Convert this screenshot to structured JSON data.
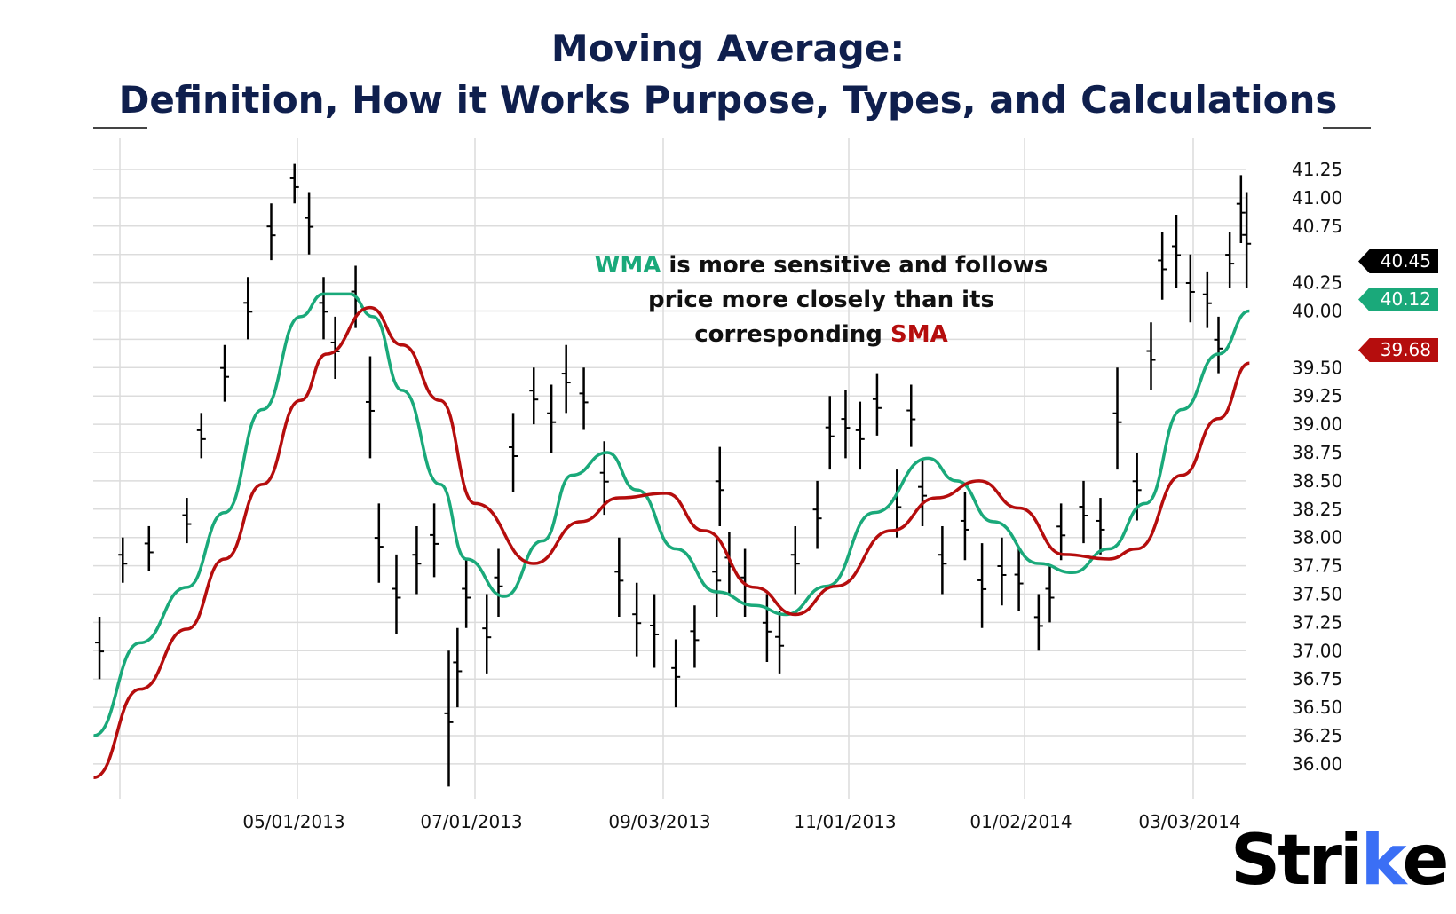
{
  "title_line1": "Moving Average:",
  "title_line2": "Definition, How it Works Purpose, Types, and Calculations",
  "annotation": {
    "wma_word": "WMA",
    "line1_rest": " is more sensitive and follows",
    "line2": "price more closely than its",
    "line3_pre": "corresponding ",
    "sma_word": "SMA"
  },
  "badges": {
    "price": "40.45",
    "wma": "40.12",
    "sma": "39.68"
  },
  "logo": {
    "text_main": "Stri",
    "text_k": "k",
    "text_e": "e"
  },
  "colors": {
    "price": "#000000",
    "wma": "#1aa97a",
    "sma": "#b50d0d",
    "title": "#0f1f4d",
    "grid": "#dcdcdc",
    "logo_accent": "#3b6ff5"
  },
  "chart_data": {
    "type": "ohlc-line",
    "title": "",
    "xlabel": "",
    "ylabel": "",
    "ylim": [
      35.9,
      41.3
    ],
    "grid": true,
    "y_ticks": [
      "41.25",
      "41.00",
      "40.75",
      "40.50",
      "40.25",
      "40.00",
      "39.75",
      "39.50",
      "39.25",
      "39.00",
      "38.75",
      "38.50",
      "38.25",
      "38.00",
      "37.75",
      "37.50",
      "37.25",
      "37.00",
      "36.75",
      "36.50",
      "36.25",
      "36.00"
    ],
    "y_ticks_labeled": [
      "41.25",
      "41.00",
      "40.75",
      "40.25",
      "40.00",
      "39.50",
      "39.25",
      "39.00",
      "38.75",
      "38.50",
      "38.25",
      "38.00",
      "37.75",
      "37.50",
      "37.25",
      "37.00",
      "36.75",
      "36.50",
      "36.25",
      "36.00"
    ],
    "x_gridlines": [
      "2013-03-01",
      "2013-05-01",
      "2013-07-01",
      "2013-09-03",
      "2013-11-01",
      "2014-01-02",
      "2014-03-03"
    ],
    "x_tick_labels": [
      {
        "date": "2013-05-01",
        "label": "05/01/2013"
      },
      {
        "date": "2013-07-01",
        "label": "07/01/2013"
      },
      {
        "date": "2013-09-03",
        "label": "09/03/2013"
      },
      {
        "date": "2013-11-01",
        "label": "11/01/2013"
      },
      {
        "date": "2014-01-02",
        "label": "01/02/2014"
      },
      {
        "date": "2014-03-03",
        "label": "03/03/2014"
      }
    ],
    "price_bars_low_high": [
      [
        "2013-02-22",
        36.75,
        37.3
      ],
      [
        "2013-03-02",
        37.6,
        38.0
      ],
      [
        "2013-03-11",
        37.7,
        38.1
      ],
      [
        "2013-03-24",
        37.95,
        38.35
      ],
      [
        "2013-03-29",
        38.7,
        39.1
      ],
      [
        "2013-04-06",
        39.2,
        39.7
      ],
      [
        "2013-04-14",
        39.75,
        40.3
      ],
      [
        "2013-04-22",
        40.45,
        40.95
      ],
      [
        "2013-04-30",
        40.95,
        41.3
      ],
      [
        "2013-05-05",
        40.5,
        41.05
      ],
      [
        "2013-05-10",
        39.75,
        40.3
      ],
      [
        "2013-05-14",
        39.4,
        39.95
      ],
      [
        "2013-05-21",
        39.85,
        40.4
      ],
      [
        "2013-05-26",
        38.7,
        39.6
      ],
      [
        "2013-05-29",
        37.6,
        38.3
      ],
      [
        "2013-06-04",
        37.15,
        37.85
      ],
      [
        "2013-06-11",
        37.5,
        38.1
      ],
      [
        "2013-06-17",
        37.65,
        38.3
      ],
      [
        "2013-06-22",
        35.8,
        37.0
      ],
      [
        "2013-06-25",
        36.5,
        37.2
      ],
      [
        "2013-06-28",
        37.2,
        37.8
      ],
      [
        "2013-07-05",
        36.8,
        37.5
      ],
      [
        "2013-07-09",
        37.3,
        37.9
      ],
      [
        "2013-07-14",
        38.4,
        39.1
      ],
      [
        "2013-07-21",
        39.0,
        39.5
      ],
      [
        "2013-07-27",
        38.75,
        39.35
      ],
      [
        "2013-08-01",
        39.1,
        39.7
      ],
      [
        "2013-08-07",
        38.95,
        39.5
      ],
      [
        "2013-08-14",
        38.2,
        38.85
      ],
      [
        "2013-08-19",
        37.3,
        38.0
      ],
      [
        "2013-08-25",
        36.95,
        37.6
      ],
      [
        "2013-08-31",
        36.85,
        37.5
      ],
      [
        "2013-09-07",
        36.5,
        37.1
      ],
      [
        "2013-09-13",
        36.85,
        37.4
      ],
      [
        "2013-09-20",
        37.3,
        38.0
      ],
      [
        "2013-09-21",
        38.1,
        38.8
      ],
      [
        "2013-09-24",
        37.5,
        38.05
      ],
      [
        "2013-09-29",
        37.3,
        37.9
      ],
      [
        "2013-10-06",
        36.9,
        37.5
      ],
      [
        "2013-10-10",
        36.8,
        37.35
      ],
      [
        "2013-10-15",
        37.5,
        38.1
      ],
      [
        "2013-10-22",
        37.9,
        38.5
      ],
      [
        "2013-10-26",
        38.6,
        39.25
      ],
      [
        "2013-10-31",
        38.7,
        39.3
      ],
      [
        "2013-11-05",
        38.6,
        39.2
      ],
      [
        "2013-11-11",
        38.9,
        39.45
      ],
      [
        "2013-11-18",
        38.0,
        38.6
      ],
      [
        "2013-11-23",
        38.8,
        39.35
      ],
      [
        "2013-11-27",
        38.1,
        38.7
      ],
      [
        "2013-12-04",
        37.5,
        38.1
      ],
      [
        "2013-12-12",
        37.8,
        38.4
      ],
      [
        "2013-12-18",
        37.2,
        37.95
      ],
      [
        "2013-12-25",
        37.4,
        38.0
      ],
      [
        "2013-12-31",
        37.35,
        37.9
      ],
      [
        "2014-01-07",
        37.0,
        37.5
      ],
      [
        "2014-01-11",
        37.25,
        37.75
      ],
      [
        "2014-01-15",
        37.8,
        38.3
      ],
      [
        "2014-01-23",
        37.95,
        38.5
      ],
      [
        "2014-01-29",
        37.85,
        38.35
      ],
      [
        "2014-02-04",
        38.6,
        39.5
      ],
      [
        "2014-02-11",
        38.15,
        38.75
      ],
      [
        "2014-02-16",
        39.3,
        39.9
      ],
      [
        "2014-02-20",
        40.1,
        40.7
      ],
      [
        "2014-02-25",
        40.2,
        40.85
      ],
      [
        "2014-03-02",
        39.9,
        40.5
      ],
      [
        "2014-03-08",
        39.85,
        40.35
      ],
      [
        "2014-03-12",
        39.45,
        39.95
      ],
      [
        "2014-03-16",
        40.2,
        40.7
      ],
      [
        "2014-03-20",
        40.6,
        41.2
      ],
      [
        "2014-03-22",
        40.2,
        41.05
      ]
    ],
    "series": [
      {
        "name": "WMA",
        "last": 40.12,
        "points": [
          [
            "2013-02-20",
            36.25
          ],
          [
            "2013-03-08",
            37.07
          ],
          [
            "2013-03-24",
            37.56
          ],
          [
            "2013-04-06",
            38.22
          ],
          [
            "2013-04-19",
            39.13
          ],
          [
            "2013-05-02",
            39.95
          ],
          [
            "2013-05-10",
            40.15
          ],
          [
            "2013-05-19",
            40.15
          ],
          [
            "2013-05-27",
            39.95
          ],
          [
            "2013-06-06",
            39.3
          ],
          [
            "2013-06-19",
            38.47
          ],
          [
            "2013-06-28",
            37.81
          ],
          [
            "2013-07-11",
            37.48
          ],
          [
            "2013-07-24",
            37.97
          ],
          [
            "2013-08-03",
            38.55
          ],
          [
            "2013-08-15",
            38.75
          ],
          [
            "2013-08-25",
            38.42
          ],
          [
            "2013-09-07",
            37.9
          ],
          [
            "2013-09-20",
            37.52
          ],
          [
            "2013-10-02",
            37.4
          ],
          [
            "2013-10-12",
            37.32
          ],
          [
            "2013-10-25",
            37.57
          ],
          [
            "2013-11-10",
            38.22
          ],
          [
            "2013-11-29",
            38.7
          ],
          [
            "2013-12-09",
            38.5
          ],
          [
            "2013-12-22",
            38.14
          ],
          [
            "2014-01-07",
            37.77
          ],
          [
            "2014-01-19",
            37.69
          ],
          [
            "2014-02-01",
            37.9
          ],
          [
            "2014-02-14",
            38.3
          ],
          [
            "2014-02-27",
            39.13
          ],
          [
            "2014-03-12",
            39.62
          ],
          [
            "2014-03-23",
            40.0
          ]
        ]
      },
      {
        "name": "SMA",
        "last": 39.68,
        "points": [
          [
            "2013-02-20",
            35.88
          ],
          [
            "2013-03-08",
            36.66
          ],
          [
            "2013-03-24",
            37.19
          ],
          [
            "2013-04-06",
            37.81
          ],
          [
            "2013-04-19",
            38.47
          ],
          [
            "2013-05-02",
            39.21
          ],
          [
            "2013-05-11",
            39.62
          ],
          [
            "2013-05-26",
            40.03
          ],
          [
            "2013-06-06",
            39.7
          ],
          [
            "2013-06-19",
            39.21
          ],
          [
            "2013-07-01",
            38.3
          ],
          [
            "2013-07-21",
            37.77
          ],
          [
            "2013-08-06",
            38.14
          ],
          [
            "2013-08-19",
            38.35
          ],
          [
            "2013-09-04",
            38.39
          ],
          [
            "2013-09-16",
            38.06
          ],
          [
            "2013-10-02",
            37.56
          ],
          [
            "2013-10-15",
            37.32
          ],
          [
            "2013-10-28",
            37.57
          ],
          [
            "2013-11-16",
            38.06
          ],
          [
            "2013-12-02",
            38.35
          ],
          [
            "2013-12-17",
            38.5
          ],
          [
            "2013-12-31",
            38.26
          ],
          [
            "2014-01-16",
            37.85
          ],
          [
            "2014-02-01",
            37.81
          ],
          [
            "2014-02-11",
            37.9
          ],
          [
            "2014-02-27",
            38.55
          ],
          [
            "2014-03-12",
            39.05
          ],
          [
            "2014-03-23",
            39.54
          ]
        ]
      }
    ],
    "last_price": 40.45
  }
}
